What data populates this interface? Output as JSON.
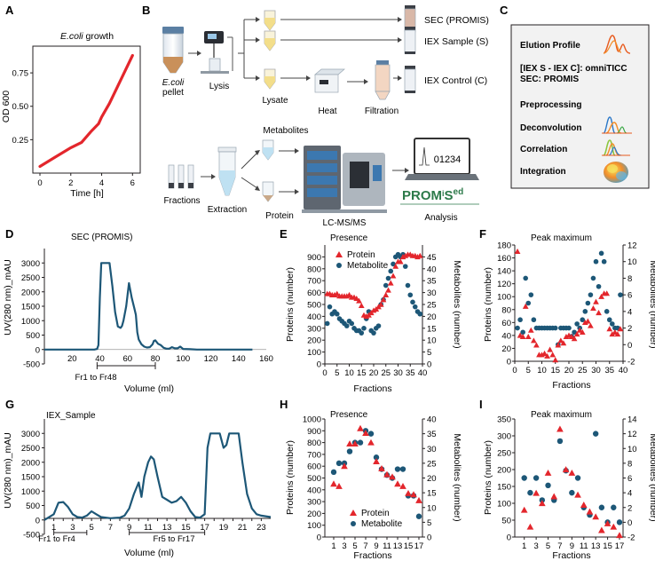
{
  "colors": {
    "protein": "#e3262c",
    "metabolite": "#1d5777",
    "uv": "#1d5777",
    "growth": "#e3262c"
  },
  "panelA": {
    "letter": "A",
    "title_italic": "E.coli",
    "title_rest": " growth",
    "ylabel": "OD 600",
    "xlabel": "Time [h]",
    "yticks": [
      "0.25",
      "0.50",
      "0.75"
    ],
    "xticks": [
      "0",
      "2",
      "4",
      "6"
    ],
    "chart_data": {
      "type": "line",
      "x": [
        0,
        1,
        2,
        2.7,
        3.3,
        3.8,
        4.0,
        4.5,
        5.0,
        5.5,
        6.0
      ],
      "y": [
        0.05,
        0.12,
        0.19,
        0.23,
        0.31,
        0.37,
        0.42,
        0.52,
        0.64,
        0.76,
        0.88
      ],
      "xlim": [
        0,
        6.5
      ],
      "ylim": [
        0,
        0.95
      ]
    }
  },
  "panelB": {
    "letter": "B",
    "pellet_italic": "E.coli",
    "pellet_rest": "pellet",
    "lysis": "Lysis",
    "lysate": "Lysate",
    "heat": "Heat",
    "filtration": "Filtration",
    "tubes": [
      "SEC (PROMIS)",
      "IEX Sample (S)",
      "IEX Control (C)"
    ],
    "fractions": "Fractions",
    "extraction": "Extraction",
    "metabolites": "Metabolites",
    "protein": "Protein",
    "lcms": "LC-MS/MS",
    "analysis": "Analysis",
    "screen_number": "01234",
    "logo_main": "PROM",
    "logo_i": "i",
    "logo_s": "S",
    "logo_ed": "ed"
  },
  "panelC": {
    "letter": "C",
    "items": [
      "Elution Profile",
      "[IEX S - IEX C]: omniTICC",
      "SEC: PROMIS",
      "Preprocessing",
      "Deconvolution",
      "Correlation",
      "Integration"
    ]
  },
  "panelD": {
    "letter": "D",
    "title": "SEC (PROMIS)",
    "ylabel": "UV(280 nm)_mAU",
    "xlabel": "Volume (ml)",
    "range_label": "Fr1 to Fr48",
    "yticks": [
      "-500",
      "0",
      "500",
      "1000",
      "1500",
      "2000",
      "2500",
      "3000"
    ],
    "xticks": [
      "20",
      "40",
      "60",
      "80",
      "100",
      "120",
      "140",
      "160"
    ],
    "chart_data": {
      "type": "line",
      "x": [
        0,
        36,
        38,
        39,
        40,
        41,
        42,
        43,
        44,
        45,
        46,
        47,
        49,
        51,
        53,
        55,
        56,
        57,
        59,
        61,
        63,
        64,
        65,
        66,
        67,
        68,
        70,
        72,
        74,
        76,
        78,
        79,
        80,
        82,
        84,
        86,
        88,
        90,
        92,
        94,
        96,
        98,
        100,
        105,
        110,
        120,
        150
      ],
      "y": [
        0,
        0,
        20,
        150,
        1800,
        3000,
        3000,
        3000,
        3000,
        3000,
        3000,
        3000,
        2200,
        1300,
        800,
        750,
        820,
        1000,
        1500,
        2300,
        1800,
        1600,
        1400,
        1200,
        600,
        350,
        180,
        100,
        70,
        80,
        180,
        300,
        320,
        200,
        150,
        60,
        30,
        30,
        80,
        40,
        40,
        100,
        20,
        10,
        0,
        0,
        0
      ],
      "xlim": [
        0,
        160
      ],
      "ylim": [
        -500,
        3500
      ]
    }
  },
  "panelE": {
    "letter": "E",
    "title": "Presence",
    "ylabel_left": "Proteins (number)",
    "ylabel_right": "Metabolites (number)",
    "xlabel": "Fractions",
    "legend": [
      "Protein",
      "Metabolite"
    ],
    "yticks_left": [
      "0",
      "100",
      "200",
      "300",
      "400",
      "500",
      "600",
      "700",
      "800",
      "900"
    ],
    "yticks_right": [
      "0",
      "5",
      "10",
      "15",
      "20",
      "25",
      "30",
      "35",
      "40",
      "45"
    ],
    "xticks": [
      "0",
      "5",
      "10",
      "15",
      "20",
      "25",
      "30",
      "35",
      "40"
    ],
    "chart_data": {
      "type": "scatter",
      "x": [
        1,
        2,
        3,
        4,
        5,
        6,
        7,
        8,
        9,
        10,
        11,
        12,
        13,
        14,
        15,
        16,
        17,
        18,
        19,
        20,
        21,
        22,
        23,
        24,
        25,
        26,
        27,
        28,
        29,
        30,
        31,
        32,
        33,
        34,
        35,
        36,
        37,
        38,
        39
      ],
      "series": [
        {
          "name": "Protein",
          "axis": "left",
          "values": [
            590,
            590,
            580,
            580,
            590,
            570,
            570,
            570,
            570,
            580,
            560,
            560,
            550,
            530,
            490,
            410,
            400,
            410,
            430,
            450,
            460,
            480,
            500,
            540,
            580,
            620,
            680,
            740,
            820,
            860,
            860,
            900,
            910,
            920,
            920,
            910,
            910,
            900,
            910
          ]
        },
        {
          "name": "Metabolite",
          "axis": "right",
          "values": [
            17,
            24,
            21,
            22,
            21,
            19,
            18,
            17,
            16,
            18,
            17,
            15,
            14,
            14,
            13,
            15,
            19,
            22,
            14,
            13,
            15,
            16,
            25,
            27,
            33,
            36,
            39,
            42,
            45,
            46,
            45,
            46,
            41,
            33,
            29,
            26,
            24,
            22,
            21
          ]
        }
      ],
      "xlim": [
        0,
        40
      ],
      "ylim_left": [
        0,
        1000
      ],
      "ylim_right": [
        0,
        50
      ]
    }
  },
  "panelF": {
    "letter": "F",
    "title": "Peak maximum",
    "ylabel_left": "Proteins (number)",
    "ylabel_right": "Metabolites (number)",
    "xlabel": "Fractions",
    "yticks_left": [
      "0",
      "20",
      "40",
      "60",
      "80",
      "100",
      "120",
      "140",
      "160",
      "180"
    ],
    "yticks_right": [
      "-2",
      "0",
      "2",
      "4",
      "6",
      "8",
      "10",
      "12"
    ],
    "xticks": [
      "0",
      "5",
      "10",
      "15",
      "20",
      "25",
      "30",
      "35",
      "40"
    ],
    "chart_data": {
      "type": "scatter",
      "x": [
        1,
        2,
        3,
        4,
        5,
        6,
        7,
        8,
        9,
        10,
        11,
        12,
        13,
        14,
        15,
        16,
        17,
        18,
        19,
        20,
        21,
        22,
        23,
        24,
        25,
        26,
        27,
        28,
        29,
        30,
        31,
        32,
        33,
        34,
        35,
        36,
        37,
        38,
        39
      ],
      "series": [
        {
          "name": "Protein",
          "axis": "left",
          "values": [
            170,
            40,
            38,
            85,
            38,
            48,
            32,
            25,
            10,
            10,
            12,
            8,
            18,
            10,
            2,
            25,
            32,
            28,
            38,
            40,
            38,
            35,
            42,
            48,
            45,
            60,
            62,
            55,
            82,
            92,
            75,
            100,
            105,
            105,
            50,
            42,
            45,
            42,
            50
          ]
        },
        {
          "name": "Metabolite",
          "axis": "right",
          "values": [
            2,
            3,
            1.5,
            8,
            5,
            6,
            3,
            2,
            2,
            2,
            2,
            2,
            2,
            2,
            2,
            0,
            2,
            2,
            2,
            2,
            1,
            1.5,
            2.5,
            2,
            3,
            4,
            5,
            6,
            8,
            10,
            7,
            11,
            10,
            4,
            3,
            2.5,
            2,
            2,
            6
          ]
        }
      ],
      "xlim": [
        0,
        40
      ],
      "ylim_left": [
        0,
        180
      ],
      "ylim_right": [
        -2,
        12
      ]
    }
  },
  "panelG": {
    "letter": "G",
    "title": "IEX_Sample",
    "ylabel": "UV(280 nm)_mAU",
    "xlabel": "Volume (ml)",
    "range1": "Fr1 to Fr4",
    "range2": "Fr5 to Fr17",
    "yticks": [
      "-500",
      "0",
      "500",
      "1000",
      "1500",
      "2000",
      "2500",
      "3000"
    ],
    "xticks": [
      "1",
      "3",
      "5",
      "7",
      "9",
      "11",
      "13",
      "15",
      "17",
      "19",
      "21",
      "23"
    ],
    "chart_data": {
      "type": "line",
      "x": [
        0,
        1,
        1.5,
        2,
        2.5,
        3,
        3.5,
        4,
        4.5,
        5,
        5.5,
        6,
        7,
        8,
        8.5,
        9,
        9.5,
        10,
        10.3,
        10.6,
        11,
        11.3,
        11.6,
        12,
        12.5,
        13,
        13.5,
        14,
        14.5,
        15,
        15.5,
        16,
        16.5,
        17,
        17.3,
        17.6,
        18,
        18.3,
        18.6,
        19,
        19.3,
        19.6,
        20,
        20.3,
        20.6,
        21,
        21.5,
        22,
        22.5,
        23,
        24
      ],
      "y": [
        0,
        200,
        600,
        620,
        450,
        200,
        100,
        80,
        150,
        300,
        200,
        100,
        60,
        80,
        150,
        400,
        900,
        1300,
        800,
        1500,
        2000,
        2200,
        2100,
        1500,
        800,
        700,
        600,
        650,
        800,
        600,
        300,
        100,
        80,
        200,
        2500,
        3000,
        3000,
        3000,
        3000,
        2500,
        2600,
        3000,
        3000,
        3000,
        3000,
        2000,
        900,
        400,
        200,
        150,
        100
      ],
      "xlim": [
        0,
        24
      ],
      "ylim": [
        -500,
        3500
      ]
    }
  },
  "panelH": {
    "letter": "H",
    "title": "Presence",
    "ylabel_left": "Proteins (number)",
    "ylabel_right": "Metabolites (number)",
    "xlabel": "Fractions",
    "legend": [
      "Protein",
      "Metabolite"
    ],
    "yticks_left": [
      "0",
      "100",
      "200",
      "300",
      "400",
      "500",
      "600",
      "700",
      "800",
      "900",
      "1000"
    ],
    "yticks_right": [
      "0",
      "5",
      "10",
      "15",
      "20",
      "25",
      "30",
      "35",
      "40"
    ],
    "xticks": [
      "1",
      "3",
      "5",
      "7",
      "9",
      "11",
      "13",
      "15",
      "17"
    ],
    "chart_data": {
      "type": "scatter",
      "x": [
        1,
        2,
        3,
        4,
        5,
        6,
        7,
        8,
        9,
        10,
        11,
        12,
        13,
        14,
        15,
        16,
        17
      ],
      "series": [
        {
          "name": "Protein",
          "axis": "left",
          "values": [
            450,
            430,
            600,
            790,
            790,
            920,
            880,
            800,
            640,
            580,
            530,
            510,
            450,
            430,
            370,
            360,
            310
          ]
        },
        {
          "name": "Metabolite",
          "axis": "right",
          "values": [
            22,
            25,
            25,
            29,
            32,
            32,
            36,
            35,
            27,
            23,
            21,
            20,
            23,
            23,
            14,
            14,
            7
          ]
        }
      ],
      "xlim": [
        0,
        17
      ],
      "ylim_left": [
        0,
        1000
      ],
      "ylim_right": [
        0,
        40
      ]
    }
  },
  "panelI": {
    "letter": "I",
    "title": "Peak maximum",
    "ylabel_left": "Proteins (number)",
    "ylabel_right": "Metabolites (number)",
    "xlabel": "Fractions",
    "yticks_left": [
      "0",
      "50",
      "100",
      "150",
      "200",
      "250",
      "300",
      "350"
    ],
    "yticks_right": [
      "-2",
      "0",
      "2",
      "4",
      "6",
      "8",
      "10",
      "12",
      "14"
    ],
    "xticks": [
      "1",
      "3",
      "5",
      "7",
      "9",
      "11",
      "13",
      "15",
      "17"
    ],
    "chart_data": {
      "type": "scatter",
      "x": [
        1,
        2,
        3,
        4,
        5,
        6,
        7,
        8,
        9,
        10,
        11,
        12,
        13,
        14,
        15,
        16,
        17
      ],
      "series": [
        {
          "name": "Protein",
          "axis": "left",
          "values": [
            80,
            30,
            130,
            100,
            190,
            120,
            320,
            200,
            190,
            125,
            95,
            75,
            60,
            20,
            40,
            30,
            5
          ]
        },
        {
          "name": "Metabolite",
          "axis": "right",
          "values": [
            6,
            4,
            6,
            3,
            5,
            3,
            11,
            7,
            4,
            6,
            2,
            1,
            12,
            2,
            0,
            2,
            0
          ]
        }
      ],
      "xlim": [
        0,
        17
      ],
      "ylim_left": [
        0,
        350
      ],
      "ylim_right": [
        -2,
        14
      ]
    }
  }
}
